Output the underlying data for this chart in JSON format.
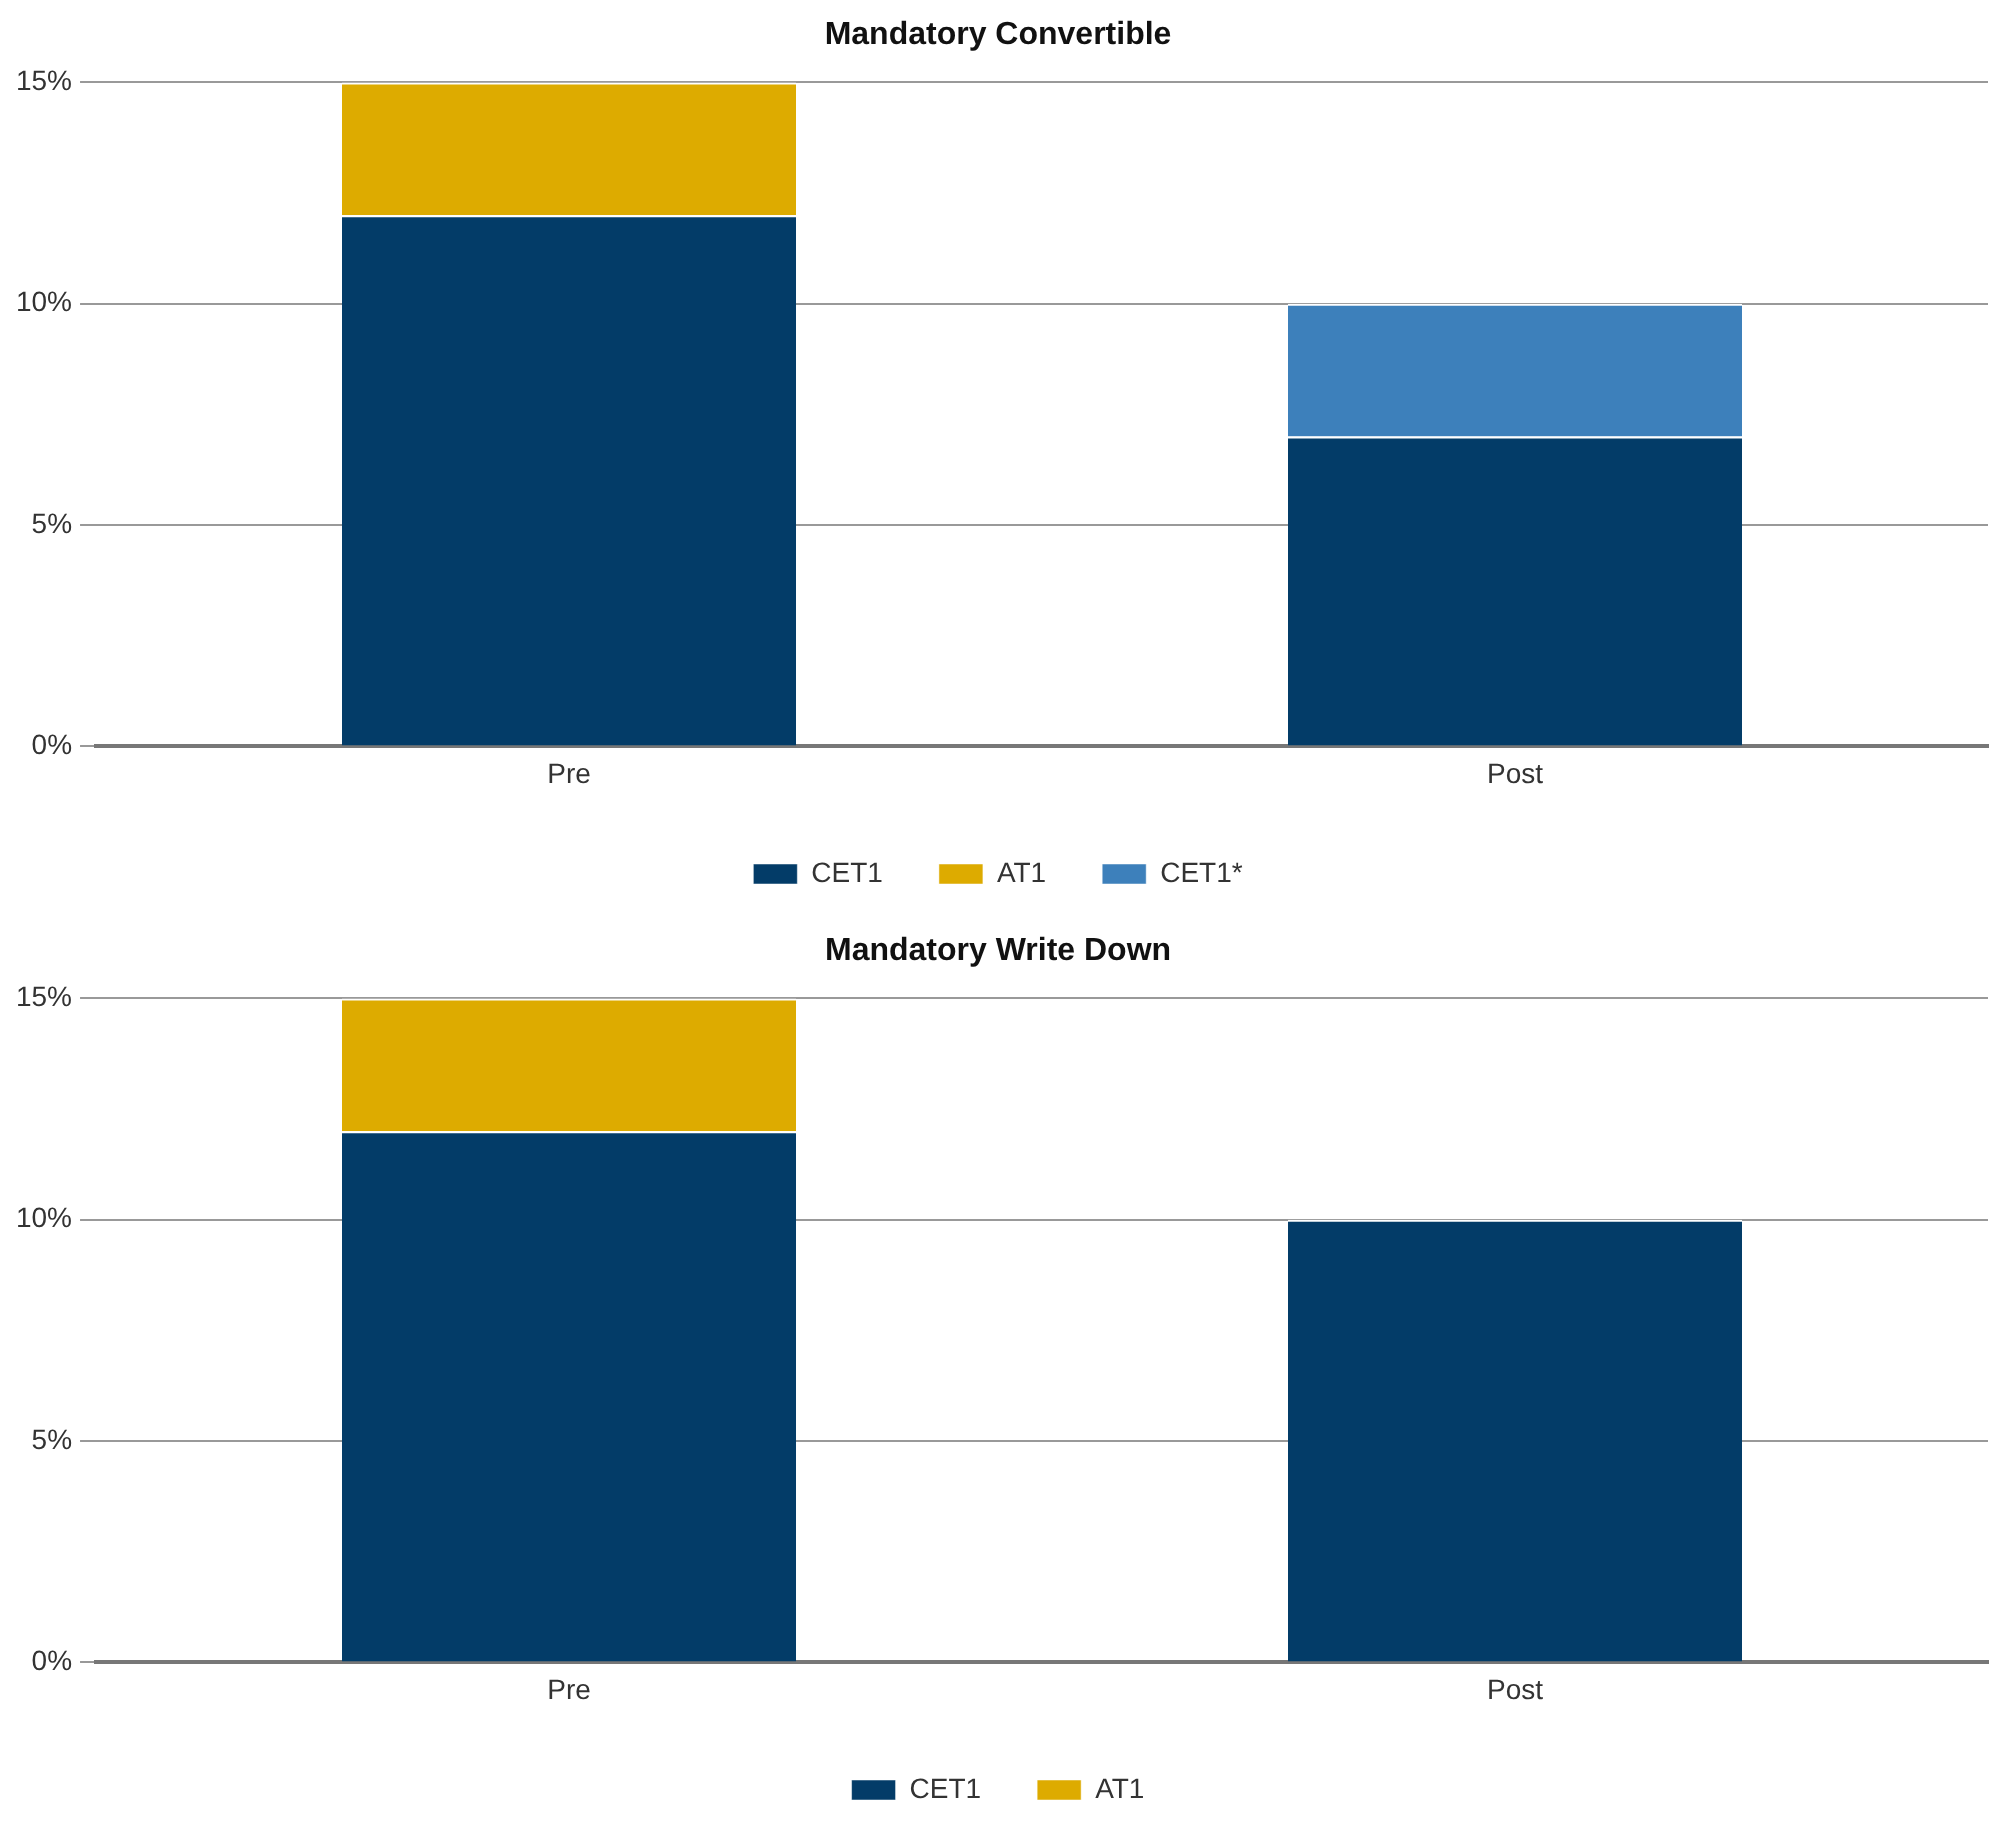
{
  "chart_data": [
    {
      "type": "bar",
      "title": "Mandatory Convertible",
      "categories": [
        "Pre",
        "Post"
      ],
      "stacked": true,
      "ylim": [
        0,
        15
      ],
      "yticks": [
        {
          "value": 0,
          "label": "0%"
        },
        {
          "value": 5,
          "label": "5%"
        },
        {
          "value": 10,
          "label": "10%"
        },
        {
          "value": 15,
          "label": "15%"
        }
      ],
      "grid": "y",
      "legend": "bottom",
      "series": [
        {
          "name": "CET1",
          "color": "#033c68",
          "values": [
            12,
            7
          ]
        },
        {
          "name": "AT1",
          "color": "#ddab00",
          "values": [
            3,
            null
          ]
        },
        {
          "name": "CET1*",
          "color": "#3d80bb",
          "values": [
            null,
            3
          ]
        }
      ]
    },
    {
      "type": "bar",
      "title": "Mandatory Write Down",
      "categories": [
        "Pre",
        "Post"
      ],
      "stacked": true,
      "ylim": [
        0,
        15
      ],
      "yticks": [
        {
          "value": 0,
          "label": "0%"
        },
        {
          "value": 5,
          "label": "5%"
        },
        {
          "value": 10,
          "label": "10%"
        },
        {
          "value": 15,
          "label": "15%"
        }
      ],
      "grid": "y",
      "legend": "bottom",
      "series": [
        {
          "name": "CET1",
          "color": "#033c68",
          "values": [
            12,
            10
          ]
        },
        {
          "name": "AT1",
          "color": "#ddab00",
          "values": [
            3,
            null
          ]
        }
      ]
    }
  ]
}
